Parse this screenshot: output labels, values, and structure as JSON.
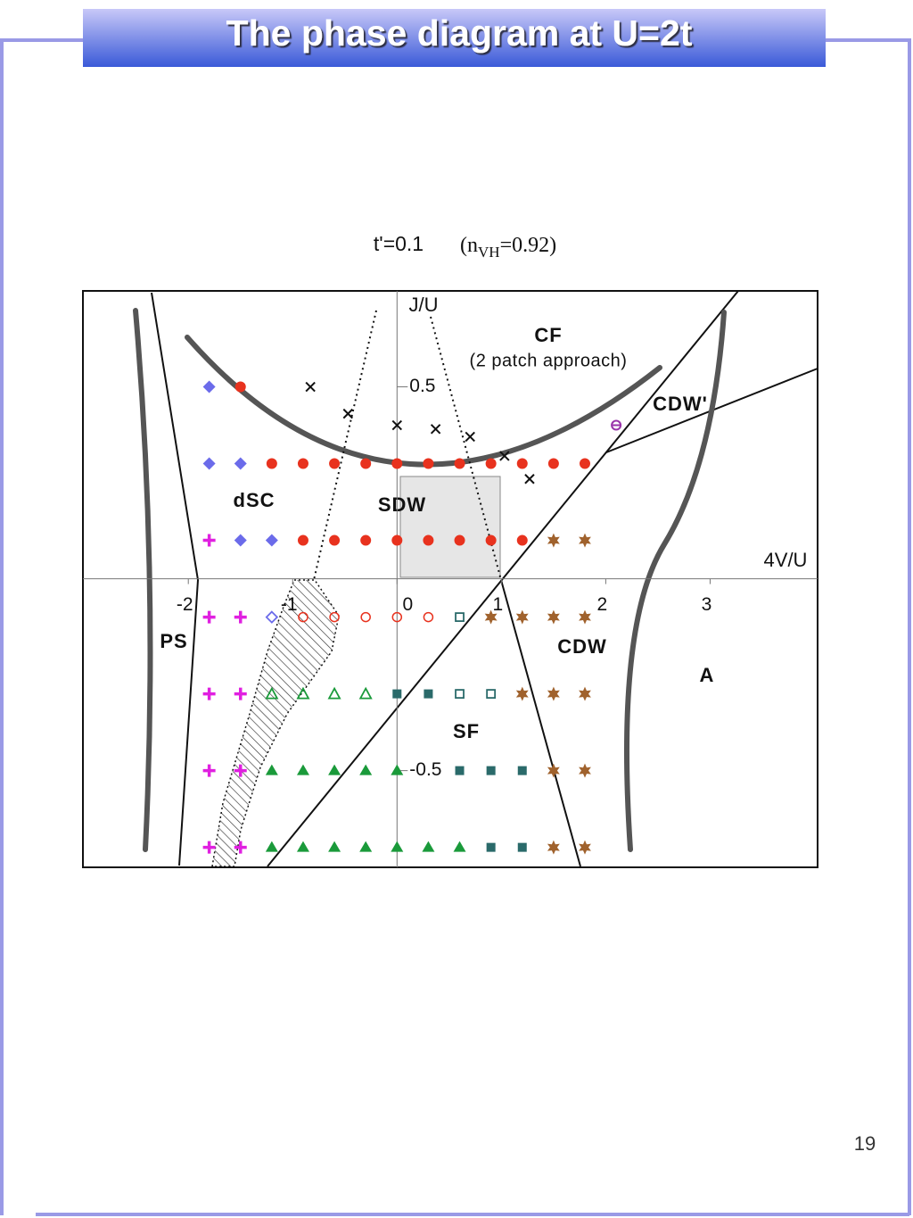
{
  "header": {
    "title": "The phase diagram at U=2t"
  },
  "page_number": "19",
  "chart_data": {
    "type": "scatter",
    "subtitle": "t'=0.1",
    "density_note": {
      "prefix": "(n",
      "subscript": "VH",
      "suffix": "=0.92)"
    },
    "x_label": "4V/U",
    "y_label": "J/U",
    "xlim": [
      -3.01,
      4.03
    ],
    "ylim": [
      -0.752,
      0.75
    ],
    "xticks": [
      -2,
      -1,
      0,
      1,
      2,
      3
    ],
    "yticks": [
      -0.5,
      0.5
    ],
    "annotations": [
      "CF",
      "(2 patch approach)",
      "CDW'",
      "dSC",
      "SDW",
      "PS",
      "CDW",
      "A",
      "SF"
    ],
    "series": [
      {
        "marker": "diamond",
        "color": "#6b6bea",
        "x": [
          -1.8,
          -1.8,
          -1.5,
          -1.5,
          -1.2
        ],
        "values": [
          0.5,
          0.3,
          0.3,
          0.1,
          0.1
        ]
      },
      {
        "marker": "diamond-open",
        "color": "#6b6bea",
        "x": [
          -1.2
        ],
        "values": [
          -0.1
        ]
      },
      {
        "marker": "circle",
        "color": "#e8321e",
        "x": [
          -1.5,
          -1.2,
          -0.9,
          -0.6,
          -0.3,
          0,
          0.3,
          0.6,
          0.9,
          1.2,
          1.5,
          1.8,
          -0.9,
          -0.6,
          -0.3,
          0,
          0.3,
          0.6,
          0.9,
          1.2
        ],
        "values": [
          0.5,
          0.3,
          0.3,
          0.3,
          0.3,
          0.3,
          0.3,
          0.3,
          0.3,
          0.3,
          0.3,
          0.3,
          0.1,
          0.1,
          0.1,
          0.1,
          0.1,
          0.1,
          0.1,
          0.1
        ]
      },
      {
        "marker": "circle-open",
        "color": "#e8321e",
        "x": [
          -0.9,
          -0.6,
          -0.3,
          0,
          0.3
        ],
        "values": [
          -0.1,
          -0.1,
          -0.1,
          -0.1,
          -0.1
        ]
      },
      {
        "marker": "x",
        "color": "#111111",
        "x": [
          -0.83,
          -0.47,
          0,
          0.37,
          0.7,
          1.03,
          1.27
        ],
        "values": [
          0.5,
          0.43,
          0.4,
          0.39,
          0.37,
          0.32,
          0.26
        ]
      },
      {
        "marker": "plus",
        "color": "#e020e0",
        "x": [
          -1.8,
          -1.8,
          -1.5,
          -1.8,
          -1.5,
          -1.8,
          -1.5,
          -1.8,
          -1.5
        ],
        "values": [
          0.1,
          -0.1,
          -0.1,
          -0.3,
          -0.3,
          -0.5,
          -0.5,
          -0.7,
          -0.7
        ]
      },
      {
        "marker": "triangle-open",
        "color": "#1a9a3a",
        "x": [
          -1.2,
          -0.9,
          -0.6,
          -0.3
        ],
        "values": [
          -0.3,
          -0.3,
          -0.3,
          -0.3
        ]
      },
      {
        "marker": "triangle",
        "color": "#1a9a3a",
        "x": [
          -1.2,
          -0.9,
          -0.6,
          -0.3,
          0,
          -1.2,
          -0.9,
          -0.6,
          -0.3,
          0,
          0.3,
          0.6
        ],
        "values": [
          -0.5,
          -0.5,
          -0.5,
          -0.5,
          -0.5,
          -0.7,
          -0.7,
          -0.7,
          -0.7,
          -0.7,
          -0.7,
          -0.7
        ]
      },
      {
        "marker": "square",
        "color": "#2a6a6a",
        "x": [
          0,
          0.3,
          0.6,
          0.9,
          1.2,
          0.9,
          1.2
        ],
        "values": [
          -0.3,
          -0.3,
          -0.5,
          -0.5,
          -0.5,
          -0.7,
          -0.7
        ]
      },
      {
        "marker": "square-open",
        "color": "#2a6a6a",
        "x": [
          0.6,
          0.6,
          0.9
        ],
        "values": [
          -0.1,
          -0.3,
          -0.3
        ]
      },
      {
        "marker": "star",
        "color": "#a0622d",
        "x": [
          1.5,
          1.8,
          0.9,
          1.2,
          1.5,
          1.8,
          1.2,
          1.5,
          1.8,
          1.5,
          1.8,
          1.5,
          1.8
        ],
        "values": [
          0.1,
          0.1,
          -0.1,
          -0.1,
          -0.1,
          -0.1,
          -0.3,
          -0.3,
          -0.3,
          -0.5,
          -0.5,
          -0.7,
          -0.7
        ]
      },
      {
        "marker": "half-circle",
        "color": "#9933aa",
        "x": [
          2.1
        ],
        "values": [
          0.4
        ]
      }
    ]
  }
}
